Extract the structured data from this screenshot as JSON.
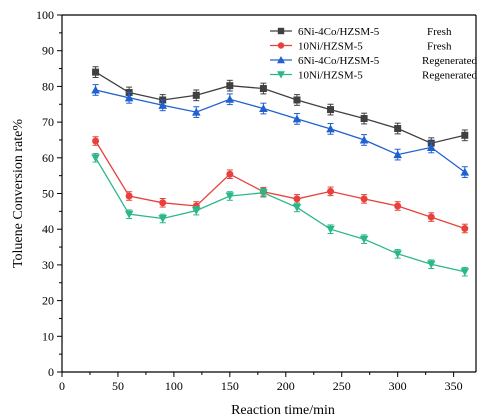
{
  "chart_data": {
    "type": "line",
    "xlabel": "Reaction time/min",
    "ylabel": "Toluene Conversion rate%",
    "xlim": [
      0,
      370
    ],
    "ylim": [
      0,
      100
    ],
    "x_ticks": [
      0,
      50,
      100,
      150,
      200,
      250,
      300,
      350
    ],
    "y_ticks": [
      0,
      10,
      20,
      30,
      40,
      50,
      60,
      70,
      80,
      90,
      100
    ],
    "grid": false,
    "legend_position": "top-right",
    "x": [
      30,
      60,
      90,
      120,
      150,
      180,
      210,
      240,
      270,
      300,
      330,
      360
    ],
    "series": [
      {
        "name": "6Ni-4Co/HZSM-5",
        "condition": "Fresh",
        "color": "#404040",
        "marker": "square",
        "values": [
          84.0,
          78.3,
          76.2,
          77.5,
          80.2,
          79.4,
          76.2,
          73.5,
          71.0,
          68.2,
          64.1,
          66.3
        ],
        "error": 1.5
      },
      {
        "name": "10Ni/HZSM-5",
        "condition": "Fresh",
        "color": "#e8413c",
        "marker": "circle",
        "values": [
          64.7,
          49.3,
          47.4,
          46.5,
          55.4,
          50.5,
          48.5,
          50.6,
          48.5,
          46.5,
          43.4,
          40.2
        ],
        "error": 1.2
      },
      {
        "name": "6Ni-4Co/HZSM-5",
        "condition": "Regenerated",
        "color": "#2060d0",
        "marker": "triangle-up",
        "values": [
          79.0,
          76.8,
          74.7,
          72.8,
          76.4,
          73.8,
          70.9,
          68.1,
          65.0,
          60.9,
          62.9,
          56.0
        ],
        "error": 1.5
      },
      {
        "name": "10Ni/HZSM-5",
        "condition": "Regenerated",
        "color": "#2ab887",
        "marker": "triangle-down",
        "values": [
          60.0,
          44.2,
          43.0,
          45.2,
          49.3,
          50.2,
          46.1,
          40.0,
          37.2,
          33.1,
          30.2,
          28.1
        ],
        "error": 1.2
      }
    ]
  }
}
